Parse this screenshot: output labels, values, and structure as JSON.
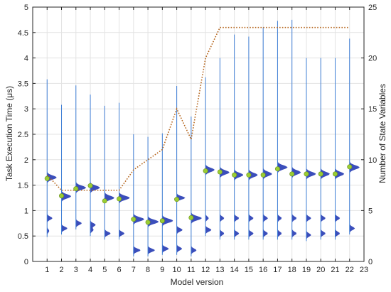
{
  "chart_data": {
    "type": "violin",
    "xlabel": "Model version",
    "ylabel_left": "Task Execution Time (μs)",
    "ylabel_right": "Number of State Variables",
    "x_ticks": [
      "1",
      "2",
      "3",
      "4",
      "5",
      "6",
      "7",
      "8",
      "9",
      "10",
      "11",
      "12",
      "13",
      "14",
      "15",
      "16",
      "17",
      "18",
      "19",
      "20",
      "21",
      "22",
      "23"
    ],
    "xlim": [
      0,
      23
    ],
    "y_left_ticks": [
      "0",
      "0.5",
      "1",
      "1.5",
      "2",
      "2.5",
      "3",
      "3.5",
      "4",
      "4.5",
      "5"
    ],
    "ylim_left": [
      0,
      5
    ],
    "y_right_ticks": [
      "0",
      "5",
      "10",
      "15",
      "20",
      "25"
    ],
    "ylim_right": [
      0,
      25
    ],
    "grid": true,
    "colors": {
      "violin_line": "#3f7fd6",
      "violin_fill": "#2a3fb5",
      "median_marker": "#9acd32",
      "median_edge": "#6b8e23",
      "state_line": "#b5651d",
      "grid": "#e3e3e3",
      "axis": "#262626"
    },
    "violins": [
      {
        "x": 1,
        "max": 3.58,
        "median": 1.63,
        "peaks": [
          [
            1.65,
            0.9
          ],
          [
            0.85,
            0.5
          ],
          [
            0.6,
            0.2
          ]
        ]
      },
      {
        "x": 2,
        "max": 3.08,
        "median": 1.29,
        "peaks": [
          [
            1.28,
            0.9
          ],
          [
            0.65,
            0.55
          ]
        ]
      },
      {
        "x": 3,
        "max": 3.46,
        "median": 1.43,
        "peaks": [
          [
            1.45,
            0.95
          ],
          [
            0.75,
            0.55
          ]
        ]
      },
      {
        "x": 4,
        "max": 3.28,
        "median": 1.49,
        "peaks": [
          [
            1.45,
            0.9
          ],
          [
            0.72,
            0.5
          ],
          [
            0.62,
            0.3
          ]
        ]
      },
      {
        "x": 5,
        "max": 3.06,
        "median": 1.19,
        "peaks": [
          [
            1.25,
            0.9
          ],
          [
            0.55,
            0.55
          ]
        ]
      },
      {
        "x": 6,
        "max": 3.12,
        "median": 1.23,
        "peaks": [
          [
            1.25,
            1.0
          ],
          [
            0.55,
            0.5
          ]
        ]
      },
      {
        "x": 7,
        "max": 2.5,
        "median": 0.83,
        "peaks": [
          [
            0.83,
            1.0
          ],
          [
            0.22,
            0.65
          ]
        ]
      },
      {
        "x": 8,
        "max": 2.45,
        "median": 0.77,
        "peaks": [
          [
            0.78,
            1.0
          ],
          [
            0.22,
            0.65
          ]
        ]
      },
      {
        "x": 9,
        "max": 2.52,
        "median": 0.8,
        "peaks": [
          [
            0.8,
            1.0
          ],
          [
            0.25,
            0.6
          ]
        ]
      },
      {
        "x": 10,
        "max": 3.45,
        "median": 1.22,
        "peaks": [
          [
            1.25,
            0.8
          ],
          [
            0.62,
            0.55
          ],
          [
            0.25,
            0.5
          ]
        ]
      },
      {
        "x": 11,
        "max": 2.85,
        "median": 0.86,
        "peaks": [
          [
            0.85,
            1.0
          ],
          [
            0.22,
            0.5
          ]
        ]
      },
      {
        "x": 12,
        "max": 3.62,
        "median": 1.78,
        "peaks": [
          [
            1.8,
            0.85
          ],
          [
            0.62,
            0.55
          ],
          [
            0.85,
            0.3
          ]
        ]
      },
      {
        "x": 13,
        "max": 4.0,
        "median": 1.76,
        "peaks": [
          [
            1.75,
            0.9
          ],
          [
            0.85,
            0.4
          ],
          [
            0.55,
            0.4
          ]
        ]
      },
      {
        "x": 14,
        "max": 4.46,
        "median": 1.7,
        "peaks": [
          [
            1.7,
            0.85
          ],
          [
            0.85,
            0.45
          ],
          [
            0.55,
            0.45
          ]
        ]
      },
      {
        "x": 15,
        "max": 4.42,
        "median": 1.7,
        "peaks": [
          [
            1.7,
            0.85
          ],
          [
            0.85,
            0.45
          ],
          [
            0.55,
            0.45
          ]
        ]
      },
      {
        "x": 16,
        "max": 4.6,
        "median": 1.7,
        "peaks": [
          [
            1.72,
            0.85
          ],
          [
            0.85,
            0.45
          ],
          [
            0.55,
            0.45
          ]
        ]
      },
      {
        "x": 17,
        "max": 4.73,
        "median": 1.82,
        "peaks": [
          [
            1.85,
            0.95
          ],
          [
            0.85,
            0.4
          ],
          [
            0.55,
            0.4
          ]
        ]
      },
      {
        "x": 18,
        "max": 4.75,
        "median": 1.72,
        "peaks": [
          [
            1.75,
            0.85
          ],
          [
            0.85,
            0.45
          ],
          [
            0.55,
            0.45
          ]
        ]
      },
      {
        "x": 19,
        "max": 4.0,
        "median": 1.72,
        "peaks": [
          [
            1.72,
            0.9
          ],
          [
            0.85,
            0.45
          ],
          [
            0.52,
            0.45
          ]
        ]
      },
      {
        "x": 20,
        "max": 4.0,
        "median": 1.72,
        "peaks": [
          [
            1.72,
            0.85
          ],
          [
            0.85,
            0.45
          ],
          [
            0.55,
            0.45
          ]
        ]
      },
      {
        "x": 21,
        "max": 4.0,
        "median": 1.72,
        "peaks": [
          [
            1.72,
            0.85
          ],
          [
            0.85,
            0.45
          ],
          [
            0.55,
            0.45
          ]
        ]
      },
      {
        "x": 22,
        "max": 4.38,
        "median": 1.86,
        "peaks": [
          [
            1.85,
            0.95
          ],
          [
            0.65,
            0.5
          ]
        ]
      }
    ],
    "state_variables": {
      "x": [
        1,
        2,
        3,
        4,
        5,
        6,
        7,
        8,
        9,
        10,
        11,
        12,
        13,
        14,
        15,
        16,
        17,
        18,
        19,
        20,
        21,
        22
      ],
      "values": [
        8.5,
        7.0,
        7.0,
        7.0,
        7.0,
        7.0,
        9.0,
        10.0,
        11.0,
        15.0,
        12.0,
        20.0,
        23.0,
        23.0,
        23.0,
        23.0,
        23.0,
        23.0,
        23.0,
        23.0,
        23.0,
        23.0
      ]
    }
  }
}
